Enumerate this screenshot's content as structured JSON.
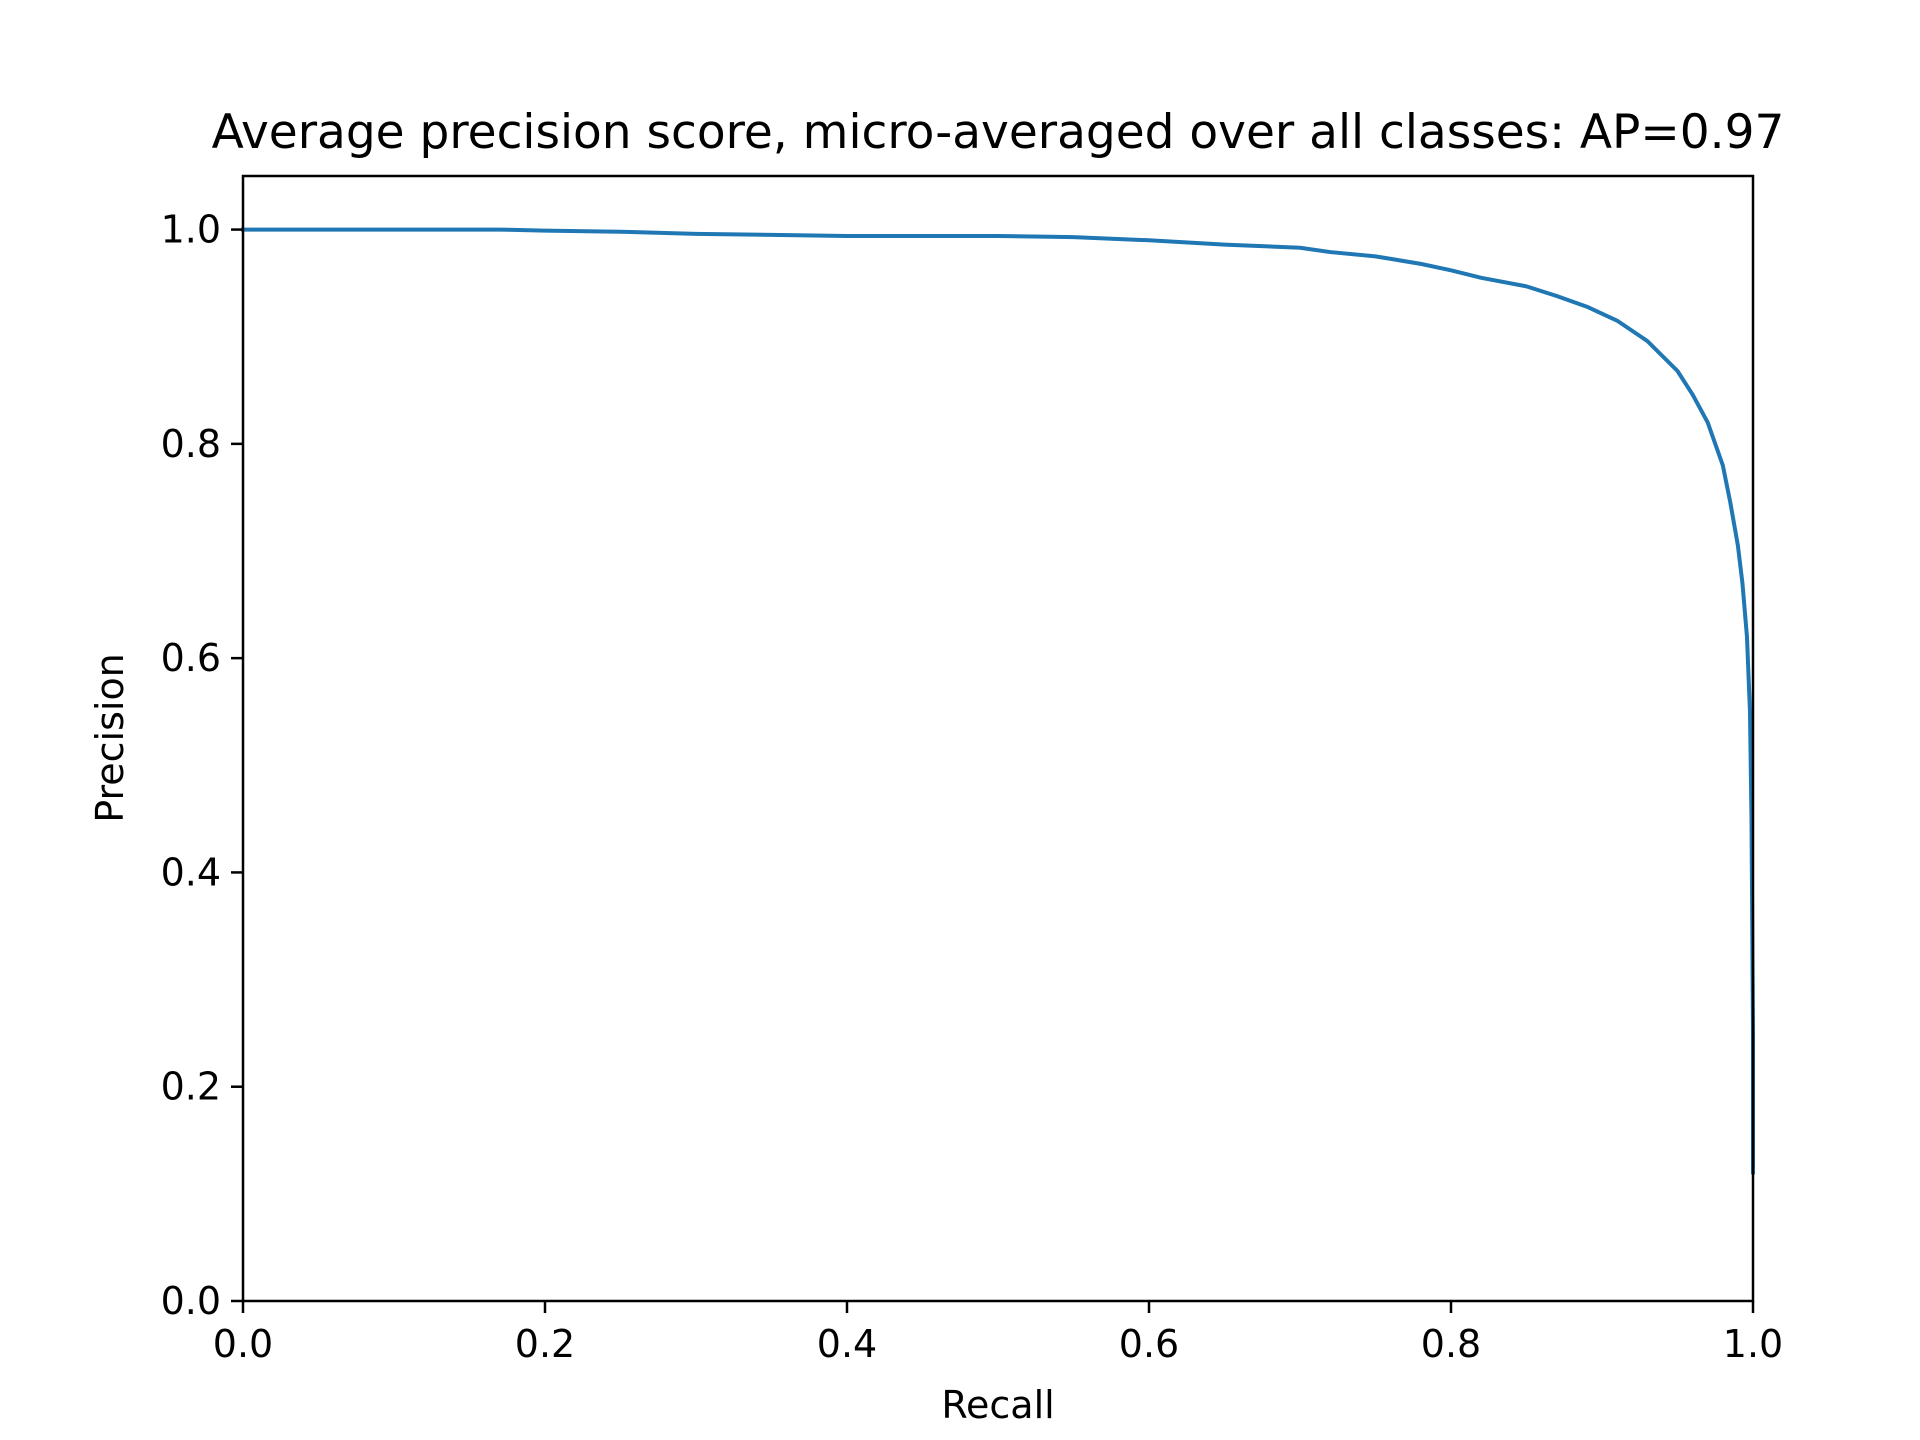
{
  "chart_data": {
    "type": "line",
    "title": "Average precision score, micro-averaged over all classes: AP=0.97",
    "xlabel": "Recall",
    "ylabel": "Precision",
    "xlim": [
      0,
      1
    ],
    "ylim": [
      0,
      1.05
    ],
    "xticks": [
      "0.0",
      "0.2",
      "0.4",
      "0.6",
      "0.8",
      "1.0"
    ],
    "yticks": [
      "0.0",
      "0.2",
      "0.4",
      "0.6",
      "0.8",
      "1.0"
    ],
    "grid": false,
    "legend": "none",
    "series": [
      {
        "color": "#1f77b4",
        "step": true,
        "x": [
          0.0,
          0.05,
          0.1,
          0.15,
          0.17,
          0.2,
          0.25,
          0.3,
          0.35,
          0.4,
          0.45,
          0.5,
          0.55,
          0.6,
          0.65,
          0.7,
          0.72,
          0.75,
          0.78,
          0.8,
          0.82,
          0.85,
          0.87,
          0.89,
          0.91,
          0.93,
          0.95,
          0.96,
          0.97,
          0.975,
          0.98,
          0.985,
          0.99,
          0.993,
          0.996,
          0.998,
          0.999,
          1.0,
          1.0
        ],
        "y": [
          1.0,
          1.0,
          1.0,
          1.0,
          1.0,
          0.999,
          0.998,
          0.996,
          0.995,
          0.994,
          0.994,
          0.994,
          0.993,
          0.99,
          0.986,
          0.983,
          0.979,
          0.975,
          0.968,
          0.962,
          0.955,
          0.947,
          0.938,
          0.928,
          0.915,
          0.896,
          0.868,
          0.846,
          0.82,
          0.8,
          0.78,
          0.745,
          0.705,
          0.67,
          0.62,
          0.55,
          0.45,
          0.25,
          0.12
        ]
      }
    ]
  }
}
